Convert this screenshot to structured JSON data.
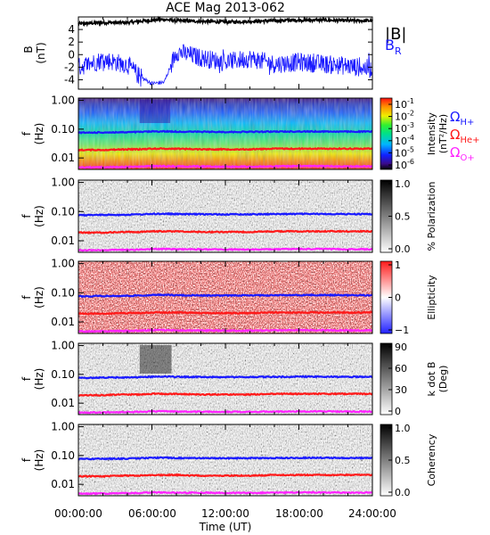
{
  "title": "ACE Mag 2013-062",
  "time_axis": {
    "label": "Time (UT)",
    "ticks": [
      "00:00:00",
      "06:00:00",
      "12:00:00",
      "18:00:00",
      "24:00:00"
    ],
    "range_hours": [
      0,
      24
    ]
  },
  "colors": {
    "B_total": "#000000",
    "B_R": "#1a1aff",
    "gyro_H": "#1a1aff",
    "gyro_He": "#ff1a1a",
    "gyro_O": "#ff22ff"
  },
  "legend": {
    "top_panel": [
      {
        "label": "|B|",
        "color": "#000000"
      },
      {
        "label": "B",
        "subscript": "R",
        "color": "#1a1aff"
      }
    ],
    "gyrofrequencies": [
      {
        "symbol": "Ω",
        "subscript": "H+",
        "color": "#1a1aff"
      },
      {
        "symbol": "Ω",
        "subscript": "He+",
        "color": "#ff1a1a"
      },
      {
        "symbol": "Ω",
        "subscript": "O+",
        "color": "#ff22ff"
      }
    ]
  },
  "panels": [
    {
      "id": "field",
      "ylabel_main": "B",
      "ylabel_unit": "(nT)",
      "yticks": [
        "4",
        "2",
        "0",
        "-2",
        "-4"
      ]
    },
    {
      "id": "intensity",
      "ylabel_main": "f",
      "ylabel_unit": "(Hz)",
      "yticks": [
        "1.00",
        "0.10",
        "0.01"
      ],
      "colorbar": "rainbow",
      "cb_label_main": "Intensity",
      "cb_label_unit": "(nT²/Hz)",
      "cb_ticks": [
        "10",
        "10",
        "10",
        "10",
        "10",
        "10"
      ],
      "cb_tick_exps": [
        "-1",
        "-2",
        "-3",
        "-4",
        "-5",
        "-6"
      ]
    },
    {
      "id": "polarization",
      "ylabel_main": "f",
      "ylabel_unit": "(Hz)",
      "yticks": [
        "1.00",
        "0.10",
        "0.01"
      ],
      "colorbar": "gray_rev",
      "cb_label_main": "% Polarization",
      "cb_label_unit": "",
      "cb_ticks": [
        "1.0",
        "0.5",
        "0.0"
      ]
    },
    {
      "id": "ellipticity",
      "ylabel_main": "f",
      "ylabel_unit": "(Hz)",
      "yticks": [
        "1.00",
        "0.10",
        "0.01"
      ],
      "colorbar": "bwr",
      "cb_label_main": "Ellipticity",
      "cb_label_unit": "",
      "cb_ticks": [
        "1",
        "0",
        "−1"
      ]
    },
    {
      "id": "kdotb",
      "ylabel_main": "f",
      "ylabel_unit": "(Hz)",
      "yticks": [
        "1.00",
        "0.10",
        "0.01"
      ],
      "colorbar": "gray_rev",
      "cb_label_main": "k dot B",
      "cb_label_unit": "(Deg)",
      "cb_ticks": [
        "90",
        "60",
        "30",
        "0"
      ]
    },
    {
      "id": "coherency",
      "ylabel_main": "f",
      "ylabel_unit": "(Hz)",
      "yticks": [
        "1.00",
        "0.10",
        "0.01"
      ],
      "colorbar": "gray_rev",
      "cb_label_main": "Coherency",
      "cb_label_unit": "",
      "cb_ticks": [
        "1.0",
        "0.5",
        "0.0"
      ]
    }
  ],
  "chart_data": {
    "type": "line",
    "title": "ACE Mag 2013-062",
    "xlabel": "Time (UT)",
    "x_hours": [
      0,
      2,
      4,
      5,
      6,
      7,
      8,
      10,
      12,
      14,
      16,
      18,
      20,
      22,
      24
    ],
    "field_panel": {
      "ylabel": "B (nT)",
      "ylim": [
        -5.5,
        6
      ],
      "series": [
        {
          "name": "|B|",
          "values": [
            4.9,
            5.1,
            5.1,
            5.3,
            5.5,
            5.6,
            5.4,
            5.3,
            5.2,
            5.3,
            5.4,
            5.5,
            5.5,
            5.4,
            5.4
          ]
        },
        {
          "name": "B_R",
          "values": [
            -2.0,
            -0.8,
            -1.6,
            -3.5,
            -4.6,
            -4.4,
            0.5,
            -0.5,
            -1.2,
            -0.6,
            -1.5,
            -1.2,
            -1.5,
            -1.8,
            -2.3
          ]
        }
      ]
    },
    "gyrofrequency_hz": {
      "H+": [
        0.075,
        0.077,
        0.078,
        0.08,
        0.083,
        0.084,
        0.082,
        0.081,
        0.08,
        0.081,
        0.082,
        0.083,
        0.083,
        0.082,
        0.082
      ],
      "He+": [
        0.019,
        0.019,
        0.02,
        0.02,
        0.021,
        0.021,
        0.021,
        0.02,
        0.02,
        0.02,
        0.021,
        0.021,
        0.021,
        0.021,
        0.021
      ],
      "O+": [
        0.0047,
        0.0048,
        0.0049,
        0.005,
        0.0052,
        0.0052,
        0.0051,
        0.0051,
        0.005,
        0.005,
        0.0051,
        0.0052,
        0.0052,
        0.0051,
        0.0051
      ]
    },
    "frequency_axis": {
      "scale": "log",
      "ylim_hz": [
        0.004,
        1.2
      ]
    }
  }
}
